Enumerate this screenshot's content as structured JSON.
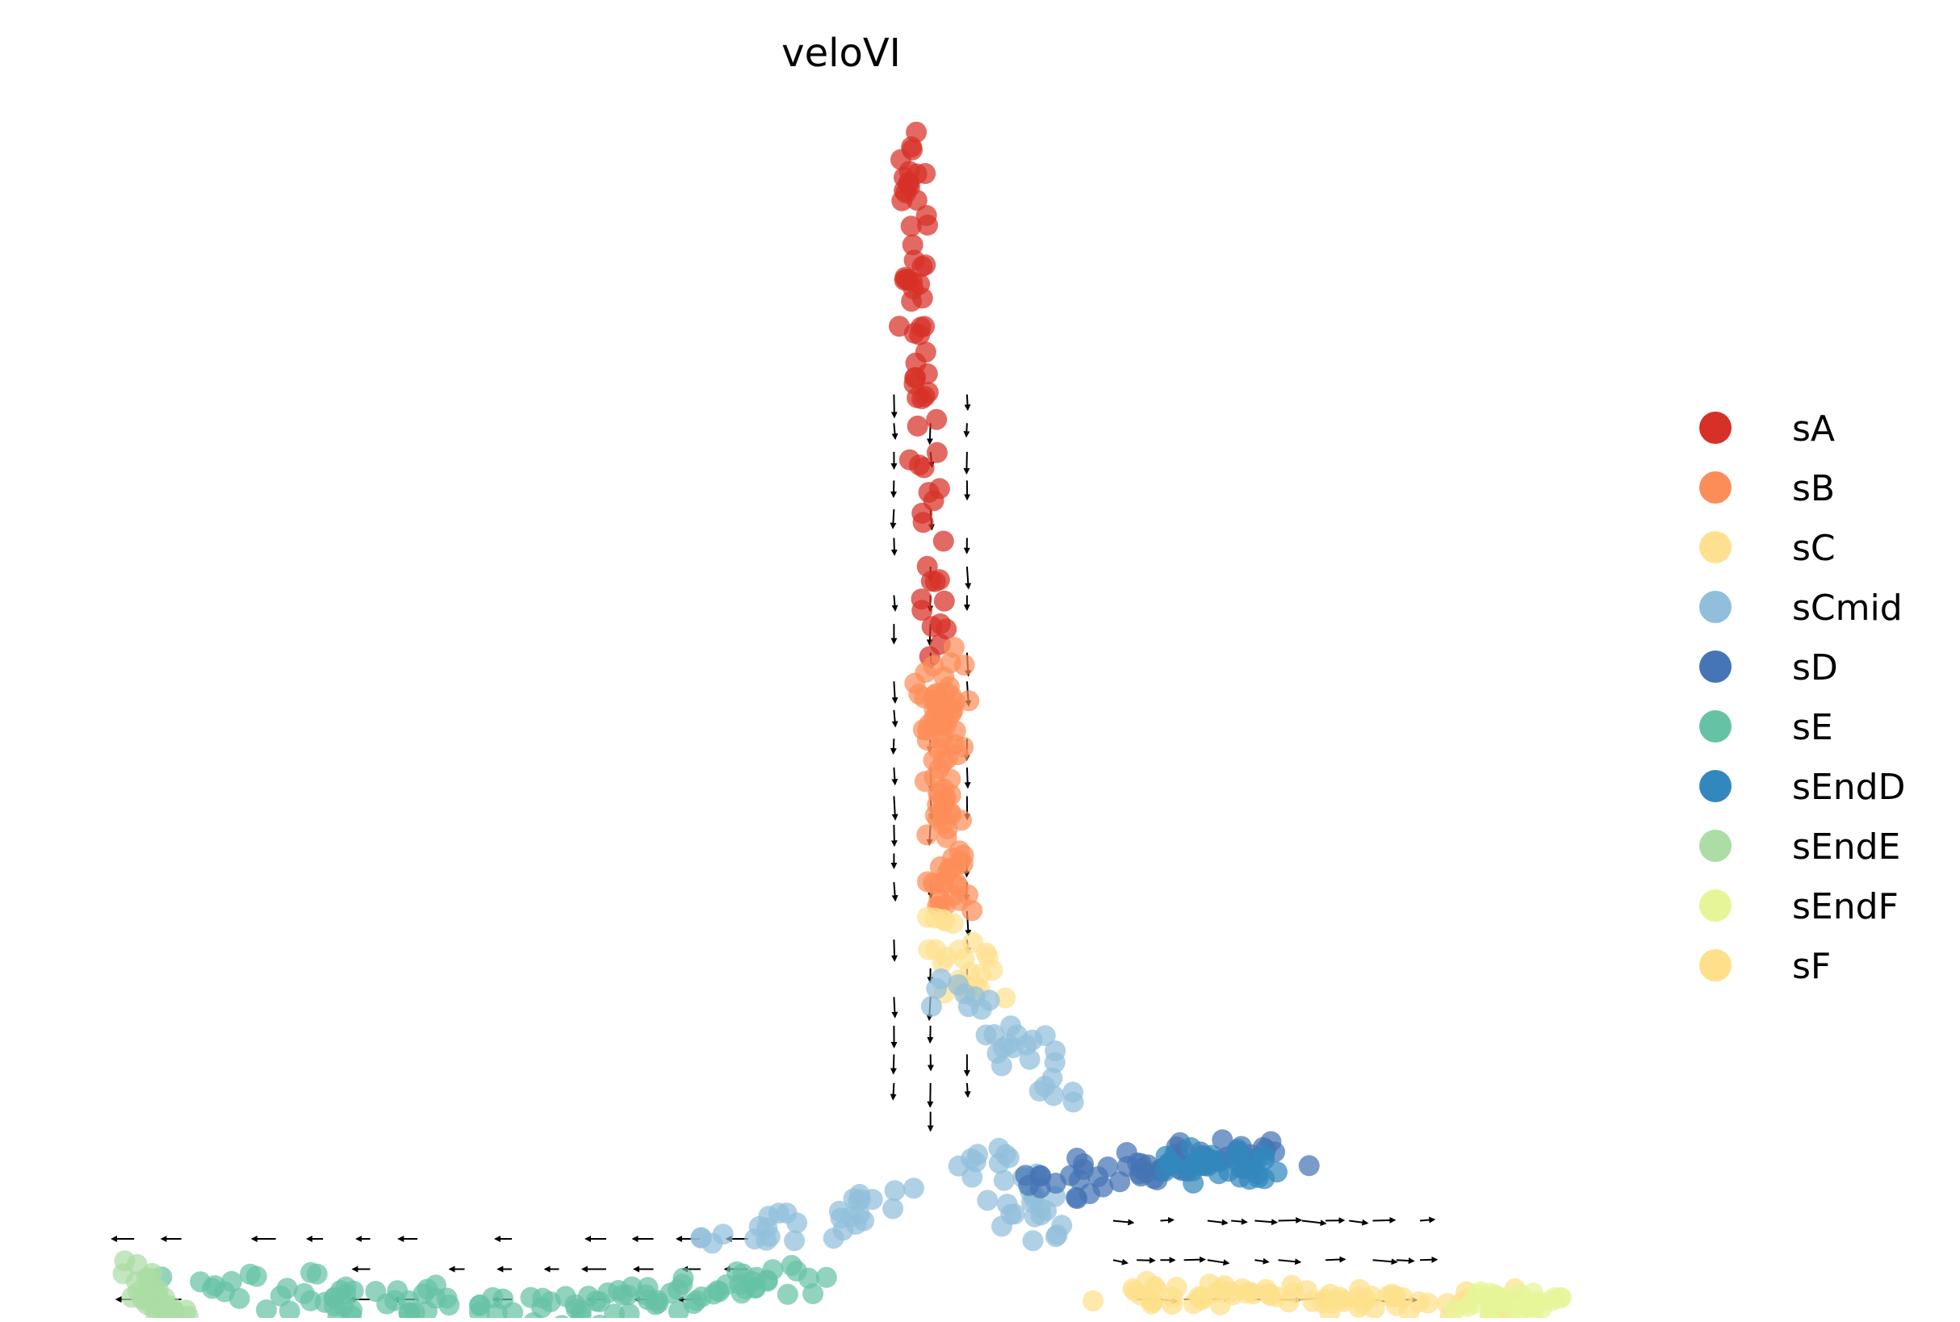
{
  "chart_data": {
    "type": "scatter",
    "title": "veloVI",
    "xlabel": "",
    "ylabel": "",
    "axes_visible": false,
    "grid": false,
    "legend_placement": "right",
    "xlim": [
      0,
      100
    ],
    "ylim": [
      0,
      100
    ],
    "legend": [
      {
        "name": "sA",
        "color": "#d73027"
      },
      {
        "name": "sB",
        "color": "#fc8d59"
      },
      {
        "name": "sC",
        "color": "#fee090"
      },
      {
        "name": "sCmid",
        "color": "#91bfdb"
      },
      {
        "name": "sD",
        "color": "#4575b4"
      },
      {
        "name": "sE",
        "color": "#66c2a5"
      },
      {
        "name": "sEndD",
        "color": "#3288bd"
      },
      {
        "name": "sEndE",
        "color": "#abdda4"
      },
      {
        "name": "sEndF",
        "color": "#e6f598"
      },
      {
        "name": "sF",
        "color": "#fee08b"
      }
    ],
    "series": [
      {
        "name": "sA",
        "color": "#d73027",
        "segments": [
          [
            55.0,
            100.0,
            55.6,
            79.0
          ],
          [
            56.1,
            79.0,
            56.8,
            45.0
          ]
        ],
        "count": 70,
        "spread": [
          1.0,
          2.3
        ]
      },
      {
        "name": "sB",
        "color": "#fc8d59",
        "segments": [
          [
            56.8,
            45.0,
            57.9,
            16.0
          ]
        ],
        "count": 90,
        "spread": [
          1.6,
          1.5
        ]
      },
      {
        "name": "sC",
        "color": "#fee090",
        "segments": [
          [
            57.5,
            16.0,
            59.2,
            6.5
          ]
        ],
        "count": 25,
        "spread": [
          2.3,
          1.5
        ]
      },
      {
        "name": "sCmid",
        "color": "#91bfdb",
        "segments": [
          [
            58.0,
            8.0,
            66.0,
            -6.0
          ],
          [
            59.0,
            -10.0,
            66.0,
            -20.0
          ],
          [
            42.0,
            -20.0,
            55.0,
            -16.0
          ]
        ],
        "count": 90,
        "spread": [
          2.6,
          2.0
        ]
      },
      {
        "name": "sD",
        "color": "#4575b4",
        "segments": [
          [
            64.0,
            -14.0,
            80.0,
            -10.0
          ]
        ],
        "count": 70,
        "spread": [
          2.8,
          1.8
        ]
      },
      {
        "name": "sEndD",
        "color": "#3288bd",
        "segments": [
          [
            74.0,
            -12.0,
            80.0,
            -12.0
          ]
        ],
        "count": 35,
        "spread": [
          1.8,
          1.8
        ]
      },
      {
        "name": "sF",
        "color": "#fee08b",
        "segments": [
          [
            69.0,
            -26.0,
            97.0,
            -27.0
          ]
        ],
        "count": 75,
        "spread": [
          3.0,
          1.5
        ]
      },
      {
        "name": "sEndF",
        "color": "#e6f598",
        "segments": [
          [
            93.0,
            -27.0,
            99.0,
            -27.0
          ]
        ],
        "count": 35,
        "spread": [
          1.8,
          1.6
        ]
      },
      {
        "name": "sE",
        "color": "#66c2a5",
        "segments": [
          [
            6.0,
            -25.0,
            30.0,
            -28.0
          ],
          [
            30.0,
            -28.0,
            48.0,
            -24.0
          ]
        ],
        "count": 110,
        "spread": [
          4.5,
          2.2
        ]
      },
      {
        "name": "sEndE",
        "color": "#abdda4",
        "segments": [
          [
            2.0,
            -24.0,
            5.0,
            -29.0
          ]
        ],
        "count": 45,
        "spread": [
          1.0,
          1.8
        ]
      }
    ],
    "velocity_arrows": [
      {
        "region": "stem",
        "direction": "down",
        "x_range": [
          54.0,
          59.0
        ],
        "y_range": [
          -6.0,
          73.0
        ]
      },
      {
        "region": "left-branch",
        "direction": "left",
        "x_range": [
          2.0,
          44.0
        ],
        "y_range": [
          -30.0,
          -20.0
        ]
      },
      {
        "region": "right-branch",
        "direction": "right",
        "x_range": [
          69.0,
          90.0
        ],
        "y_range": [
          -31.0,
          -18.0
        ]
      }
    ]
  }
}
